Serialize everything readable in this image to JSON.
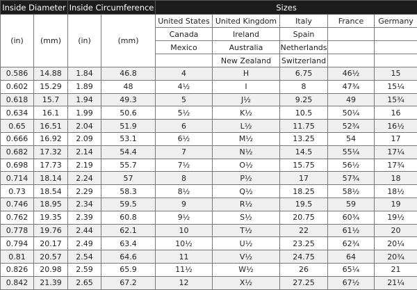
{
  "headers": {
    "inside_diameter": "Inside Diameter",
    "inside_circumference": "Inside Circumference",
    "sizes": "Sizes",
    "units": [
      "(in)",
      "(mm)",
      "(in)",
      "(mm)"
    ],
    "countries": [
      [
        "United States",
        "United Kingdom",
        "Italy",
        "France",
        "Germany"
      ],
      [
        "Canada",
        "Ireland",
        "Spain",
        "",
        ""
      ],
      [
        "Mexico",
        "Australia",
        "Netherlands",
        "",
        ""
      ],
      [
        "",
        "New Zealand",
        "Switzerland",
        "",
        ""
      ]
    ]
  },
  "rows": [
    [
      "0.586",
      "14.88",
      "1.84",
      "46.8",
      "4",
      "H",
      "6.75",
      "46½",
      "15"
    ],
    [
      "0.602",
      "15.29",
      "1.89",
      "48",
      "4½",
      "I",
      "8",
      "47¾",
      "15¼"
    ],
    [
      "0.618",
      "15.7",
      "1.94",
      "49.3",
      "5",
      "J½",
      "9.25",
      "49",
      "15¾"
    ],
    [
      "0.634",
      "16.1",
      "1.99",
      "50.6",
      "5½",
      "K½",
      "10.5",
      "50¼",
      "16"
    ],
    [
      "0.65",
      "16.51",
      "2.04",
      "51.9",
      "6",
      "L½",
      "11.75",
      "52¾",
      "16½"
    ],
    [
      "0.666",
      "16.92",
      "2.09",
      "53.1",
      "6½",
      "M½",
      "13.25",
      "54",
      "17"
    ],
    [
      "0.682",
      "17.32",
      "2.14",
      "54.4",
      "7",
      "N½",
      "14.5",
      "55¼",
      "17¼"
    ],
    [
      "0.698",
      "17.73",
      "2.19",
      "55.7",
      "7½",
      "O½",
      "15.75",
      "56½",
      "17¾"
    ],
    [
      "0.714",
      "18.14",
      "2.24",
      "57",
      "8",
      "P½",
      "17",
      "57¾",
      "18"
    ],
    [
      "0.73",
      "18.54",
      "2.29",
      "58.3",
      "8½",
      "Q½",
      "18.25",
      "58½",
      "18½"
    ],
    [
      "0.746",
      "18.95",
      "2.34",
      "59.5",
      "9",
      "R½",
      "19.5",
      "59",
      "19"
    ],
    [
      "0.762",
      "19.35",
      "2.39",
      "60.8",
      "9½",
      "S½",
      "20.75",
      "60¾",
      "19½"
    ],
    [
      "0.778",
      "19.76",
      "2.44",
      "62.1",
      "10",
      "T½",
      "22",
      "61½",
      "20"
    ],
    [
      "0.794",
      "20.17",
      "2.49",
      "63.4",
      "10½",
      "U½",
      "23.25",
      "62¾",
      "20¼"
    ],
    [
      "0.81",
      "20.57",
      "2.54",
      "64.6",
      "11",
      "V½",
      "24.75",
      "64",
      "20¾"
    ],
    [
      "0.826",
      "20.98",
      "2.59",
      "65.9",
      "11½",
      "W½",
      "26",
      "65¼",
      "21"
    ],
    [
      "0.842",
      "21.39",
      "2.65",
      "67.2",
      "12",
      "X½",
      "27.25",
      "67½",
      "21¼"
    ]
  ]
}
